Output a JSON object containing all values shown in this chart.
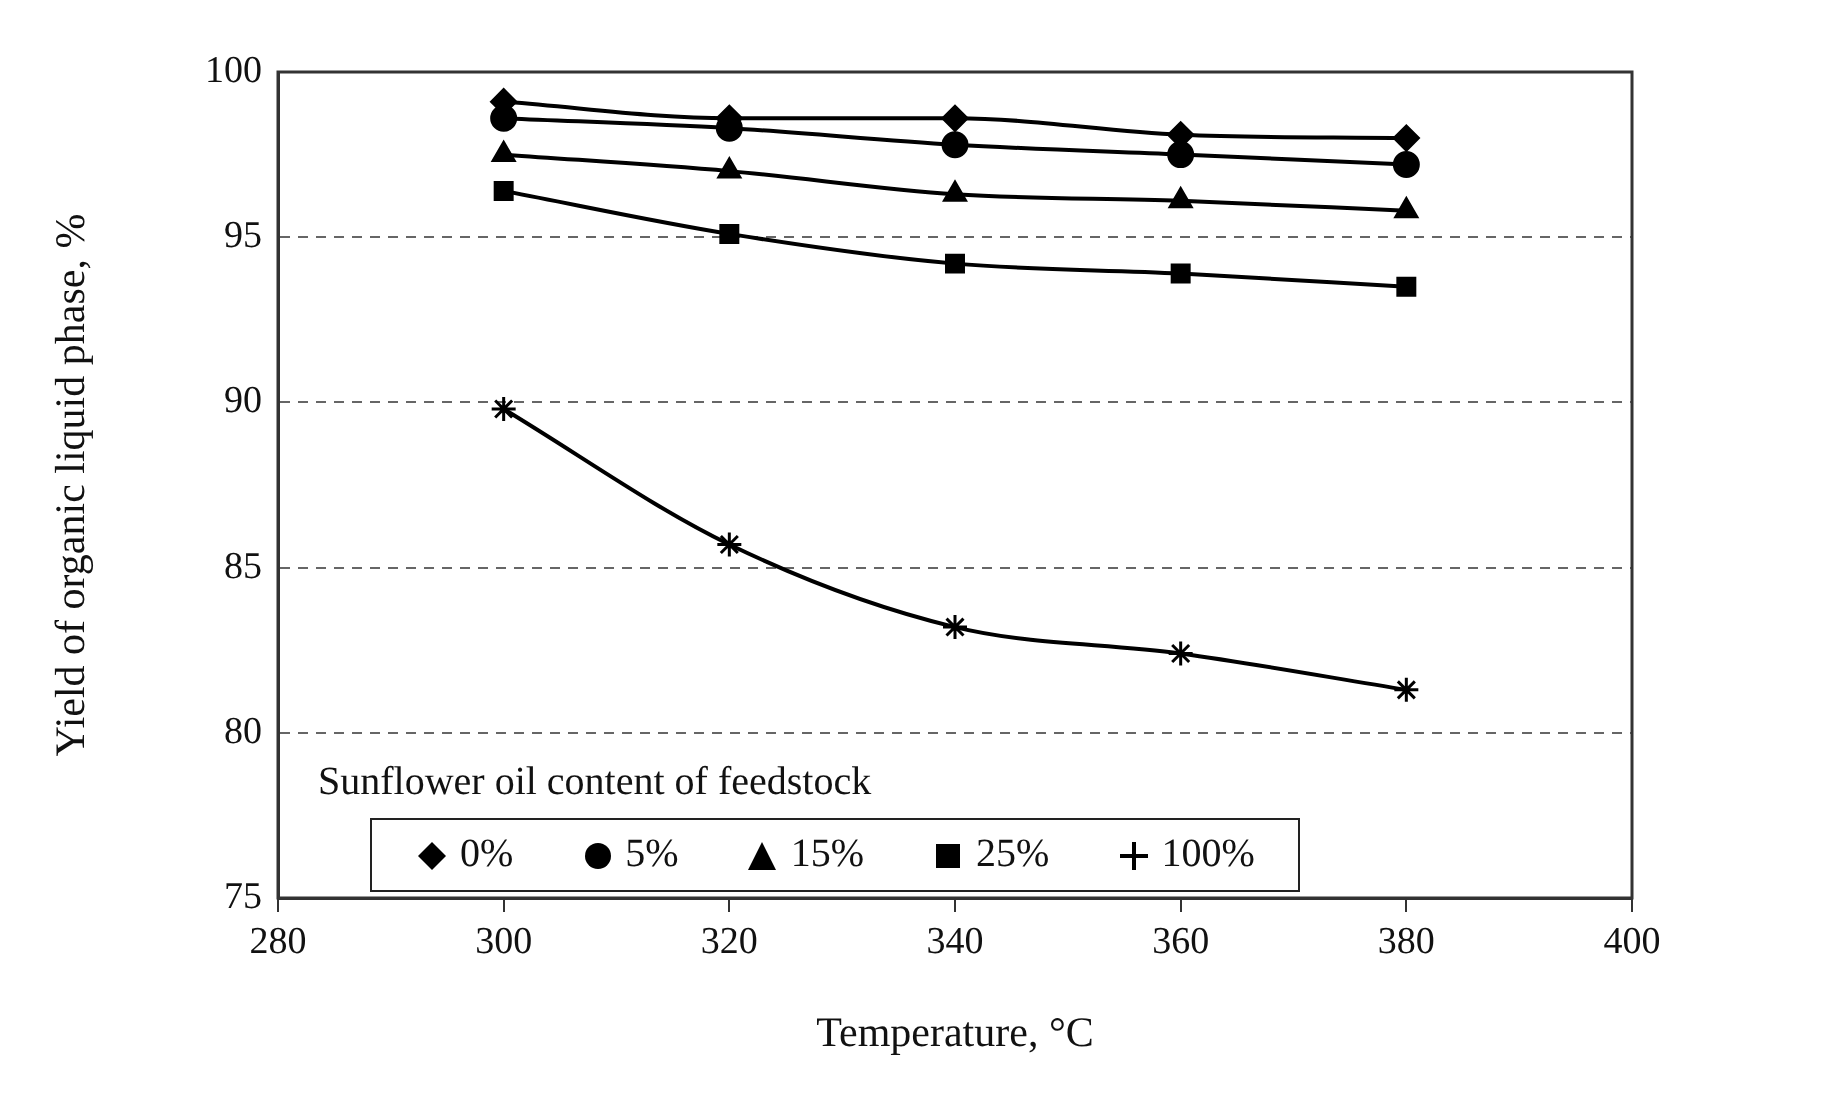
{
  "chart_data": {
    "type": "line",
    "xlabel": "Temperature, °C",
    "ylabel": "Yield of organic liquid phase, %",
    "legend_title": "Sunflower oil content of feedstock",
    "legend": "bottom",
    "grid": "y",
    "line_style": "solid",
    "x": [
      300,
      320,
      340,
      360,
      380
    ],
    "xlim": [
      280,
      400
    ],
    "xticks": [
      280,
      300,
      320,
      340,
      360,
      380,
      400
    ],
    "ylim": [
      75,
      100
    ],
    "yticks": [
      75,
      80,
      85,
      90,
      95,
      100
    ],
    "series": [
      {
        "name": "0%",
        "color": "#000000",
        "marker": "diamond",
        "values": [
          99.1,
          98.6,
          98.6,
          98.1,
          98.0
        ]
      },
      {
        "name": "5%",
        "color": "#000000",
        "marker": "circle",
        "values": [
          98.6,
          98.3,
          97.8,
          97.5,
          97.2
        ]
      },
      {
        "name": "15%",
        "color": "#000000",
        "marker": "triangle",
        "values": [
          97.5,
          97.0,
          96.3,
          96.1,
          95.8
        ]
      },
      {
        "name": "25%",
        "color": "#000000",
        "marker": "square",
        "values": [
          96.4,
          95.1,
          94.2,
          93.9,
          93.5
        ]
      },
      {
        "name": "100%",
        "color": "#000000",
        "marker": "cross",
        "values": [
          89.8,
          85.7,
          83.2,
          82.4,
          81.3
        ]
      }
    ]
  }
}
